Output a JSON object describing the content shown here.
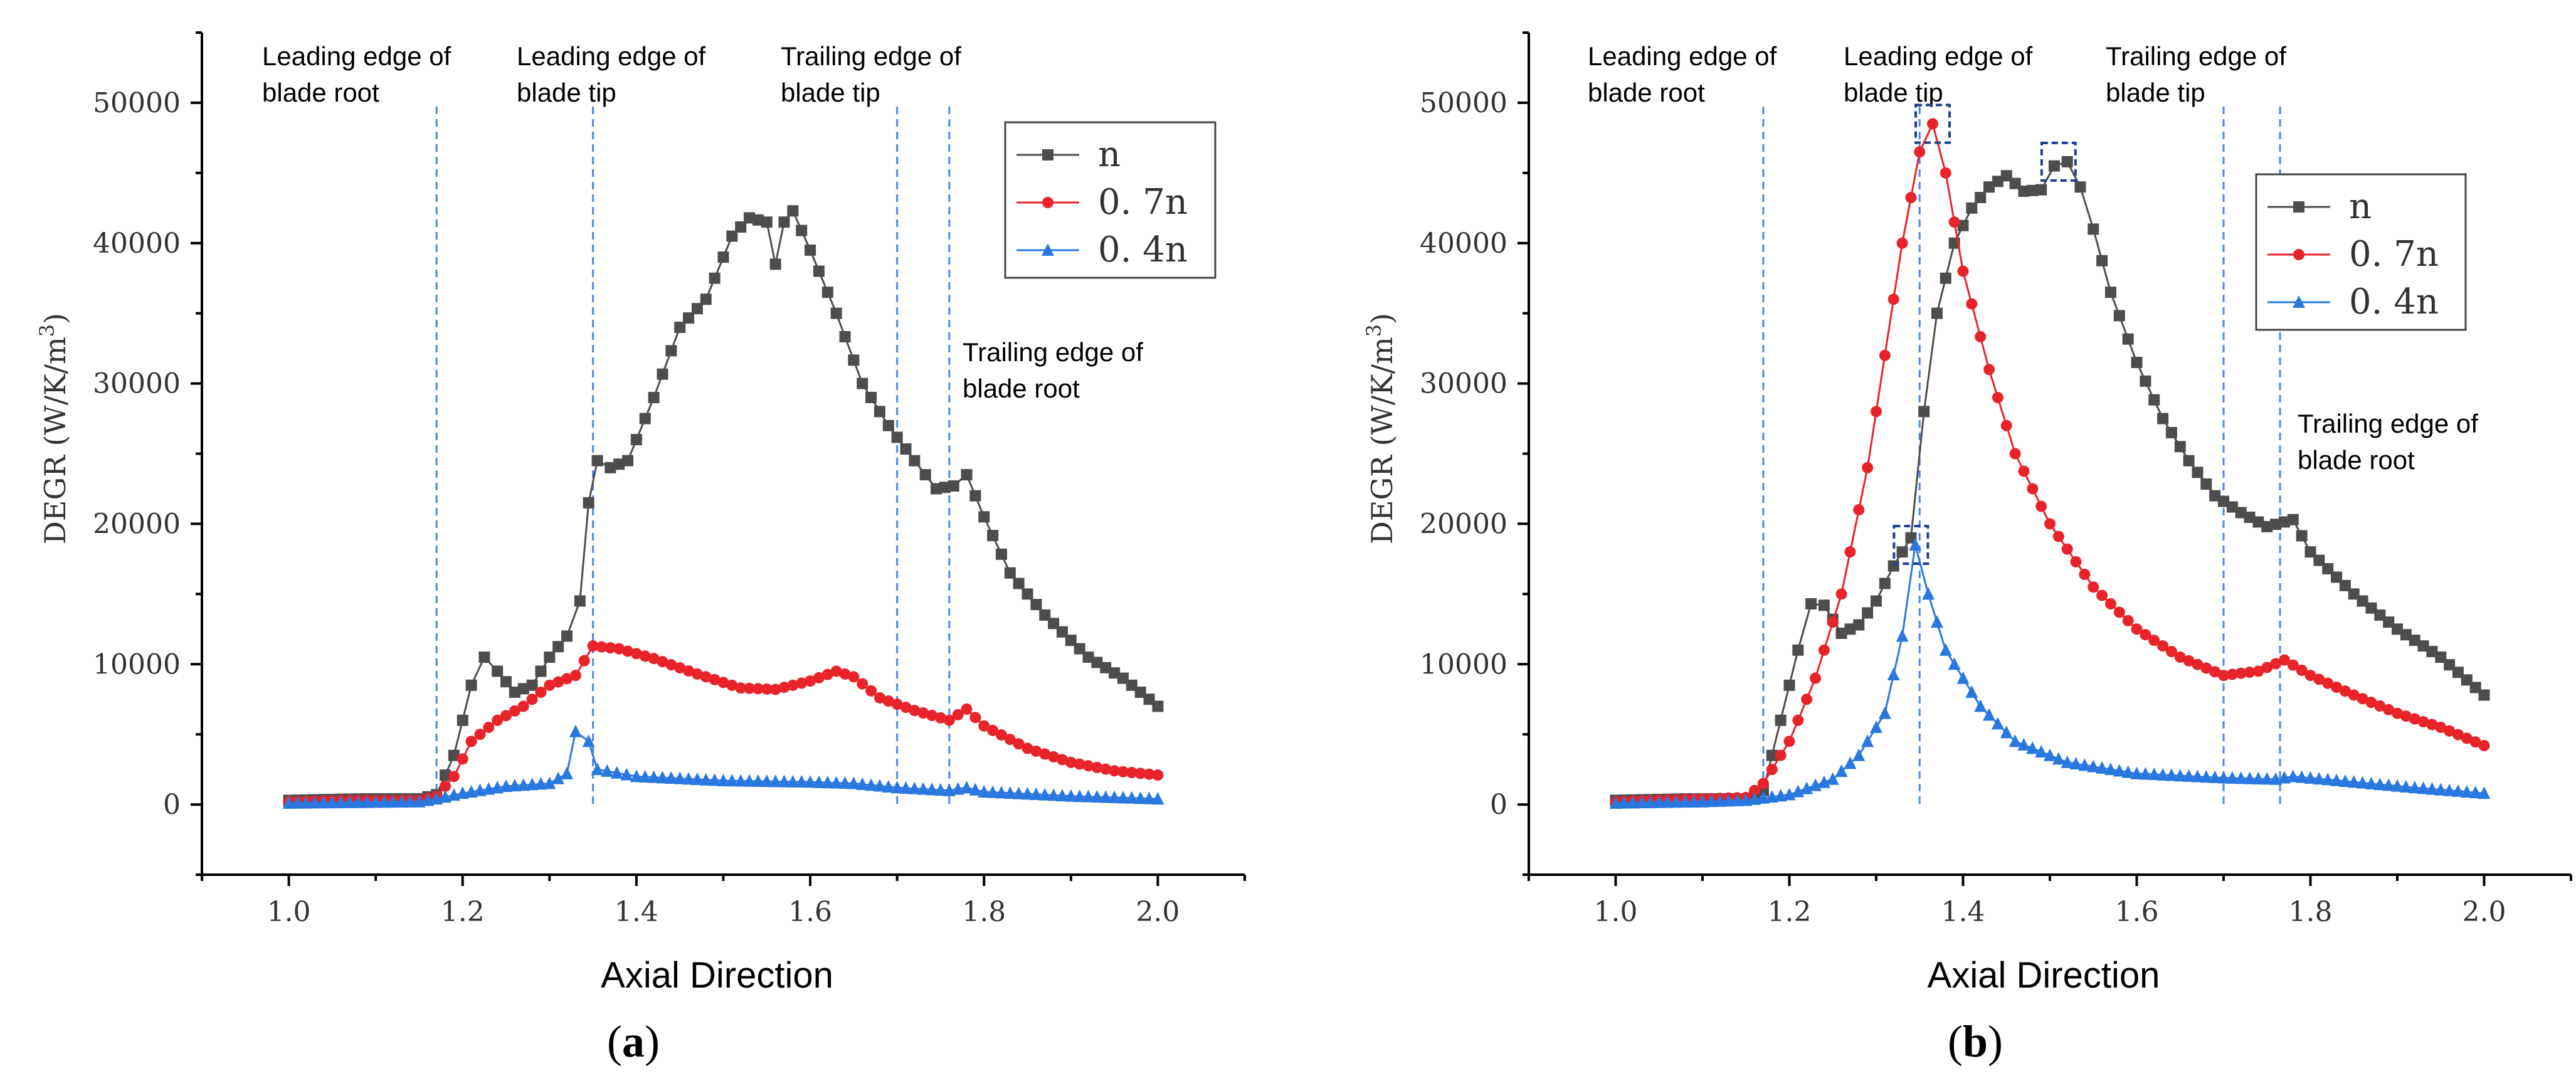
{
  "chart_data": [
    {
      "id": "a",
      "type": "line",
      "panel_label_open": "(",
      "panel_label_letter": "a",
      "panel_label_close": ")",
      "xlabel": "Axial Direction",
      "ylabel": "DEGR (W/K/m",
      "ylabel_sup": "3",
      "ylabel_close": ")",
      "xlim": [
        0.9,
        2.1
      ],
      "ylim": [
        -5000,
        55000
      ],
      "xticks": [
        "1.0",
        "1.2",
        "1.4",
        "1.6",
        "1.8",
        "2.0"
      ],
      "yticks": [
        "0",
        "10000",
        "20000",
        "30000",
        "40000",
        "50000"
      ],
      "vlines": [
        1.17,
        1.35,
        1.7,
        1.76
      ],
      "annotations": [
        {
          "lines": [
            "Leading edge of",
            "blade root"
          ],
          "x": 1.17
        },
        {
          "lines": [
            "Leading edge of",
            "blade tip"
          ],
          "x": 1.35
        },
        {
          "lines": [
            "Trailing edge of",
            "blade tip"
          ],
          "x": 1.7
        },
        {
          "lines": [
            "Trailing edge of",
            "blade root"
          ],
          "x": 1.76
        }
      ],
      "legend": [
        "n",
        "0. 7n",
        "0. 4n"
      ],
      "series": [
        {
          "name": "n",
          "color": "#4d4d4d",
          "marker": "square",
          "points": [
            [
              1.0,
              300
            ],
            [
              1.08,
              400
            ],
            [
              1.15,
              400
            ],
            [
              1.17,
              700
            ],
            [
              1.19,
              3500
            ],
            [
              1.21,
              8500
            ],
            [
              1.225,
              10500
            ],
            [
              1.24,
              9500
            ],
            [
              1.26,
              8000
            ],
            [
              1.28,
              8500
            ],
            [
              1.3,
              10500
            ],
            [
              1.32,
              12000
            ],
            [
              1.335,
              14500
            ],
            [
              1.345,
              21500
            ],
            [
              1.355,
              24500
            ],
            [
              1.37,
              24000
            ],
            [
              1.39,
              24500
            ],
            [
              1.42,
              29000
            ],
            [
              1.45,
              34000
            ],
            [
              1.48,
              36000
            ],
            [
              1.51,
              40500
            ],
            [
              1.53,
              41800
            ],
            [
              1.55,
              41500
            ],
            [
              1.56,
              38500
            ],
            [
              1.57,
              41500
            ],
            [
              1.58,
              42300
            ],
            [
              1.6,
              39500
            ],
            [
              1.63,
              35000
            ],
            [
              1.66,
              30000
            ],
            [
              1.69,
              27000
            ],
            [
              1.72,
              24500
            ],
            [
              1.745,
              22500
            ],
            [
              1.765,
              22700
            ],
            [
              1.78,
              23500
            ],
            [
              1.8,
              20500
            ],
            [
              1.83,
              16500
            ],
            [
              1.87,
              13500
            ],
            [
              1.92,
              10500
            ],
            [
              1.96,
              9000
            ],
            [
              2.0,
              7000
            ]
          ]
        },
        {
          "name": "0. 7n",
          "color": "#e8232a",
          "marker": "circle",
          "points": [
            [
              1.0,
              200
            ],
            [
              1.08,
              300
            ],
            [
              1.15,
              300
            ],
            [
              1.17,
              600
            ],
            [
              1.19,
              2000
            ],
            [
              1.21,
              4500
            ],
            [
              1.24,
              6000
            ],
            [
              1.27,
              7000
            ],
            [
              1.3,
              8500
            ],
            [
              1.33,
              9200
            ],
            [
              1.35,
              11300
            ],
            [
              1.38,
              11100
            ],
            [
              1.42,
              10400
            ],
            [
              1.47,
              9300
            ],
            [
              1.52,
              8300
            ],
            [
              1.56,
              8200
            ],
            [
              1.6,
              8800
            ],
            [
              1.63,
              9500
            ],
            [
              1.65,
              9100
            ],
            [
              1.68,
              7600
            ],
            [
              1.72,
              6700
            ],
            [
              1.76,
              6000
            ],
            [
              1.78,
              6800
            ],
            [
              1.8,
              5600
            ],
            [
              1.85,
              4000
            ],
            [
              1.9,
              3000
            ],
            [
              1.95,
              2400
            ],
            [
              2.0,
              2100
            ]
          ]
        },
        {
          "name": "0. 4n",
          "color": "#2878e0",
          "marker": "triangle",
          "points": [
            [
              1.0,
              100
            ],
            [
              1.08,
              150
            ],
            [
              1.15,
              200
            ],
            [
              1.17,
              400
            ],
            [
              1.2,
              800
            ],
            [
              1.25,
              1300
            ],
            [
              1.3,
              1500
            ],
            [
              1.32,
              2200
            ],
            [
              1.33,
              5200
            ],
            [
              1.345,
              4500
            ],
            [
              1.355,
              2500
            ],
            [
              1.4,
              2000
            ],
            [
              1.5,
              1700
            ],
            [
              1.6,
              1600
            ],
            [
              1.65,
              1500
            ],
            [
              1.7,
              1200
            ],
            [
              1.76,
              1000
            ],
            [
              1.78,
              1200
            ],
            [
              1.8,
              900
            ],
            [
              1.9,
              600
            ],
            [
              2.0,
              400
            ]
          ]
        }
      ]
    },
    {
      "id": "b",
      "type": "line",
      "panel_label_open": "(",
      "panel_label_letter": "b",
      "panel_label_close": ")",
      "xlabel": "Axial Direction",
      "ylabel": "DEGR (W/K/m",
      "ylabel_sup": "3",
      "ylabel_close": ")",
      "xlim": [
        0.9,
        2.1
      ],
      "ylim": [
        -5000,
        55000
      ],
      "xticks": [
        "1.0",
        "1.2",
        "1.4",
        "1.6",
        "1.8",
        "2.0"
      ],
      "yticks": [
        "0",
        "10000",
        "20000",
        "30000",
        "40000",
        "50000"
      ],
      "vlines": [
        1.17,
        1.35,
        1.7,
        1.765
      ],
      "annotations": [
        {
          "lines": [
            "Leading edge of",
            "blade root"
          ],
          "x": 1.17
        },
        {
          "lines": [
            "Leading edge of",
            "blade tip"
          ],
          "x": 1.35
        },
        {
          "lines": [
            "Trailing edge of",
            "blade tip"
          ],
          "x": 1.7
        },
        {
          "lines": [
            "Trailing edge of",
            "blade root"
          ],
          "x": 1.765
        }
      ],
      "legend": [
        "n",
        "0. 7n",
        "0. 4n"
      ],
      "highlights": [
        [
          1.365,
          48500
        ],
        [
          1.51,
          45800
        ],
        [
          1.34,
          18500
        ]
      ],
      "series": [
        {
          "name": "n",
          "color": "#4d4d4d",
          "marker": "square",
          "points": [
            [
              1.0,
              300
            ],
            [
              1.08,
              400
            ],
            [
              1.15,
              400
            ],
            [
              1.17,
              1000
            ],
            [
              1.19,
              6000
            ],
            [
              1.21,
              11000
            ],
            [
              1.225,
              14300
            ],
            [
              1.24,
              14200
            ],
            [
              1.26,
              12200
            ],
            [
              1.28,
              12800
            ],
            [
              1.3,
              14500
            ],
            [
              1.32,
              17000
            ],
            [
              1.34,
              19000
            ],
            [
              1.355,
              28000
            ],
            [
              1.37,
              35000
            ],
            [
              1.39,
              40000
            ],
            [
              1.41,
              42500
            ],
            [
              1.43,
              44000
            ],
            [
              1.45,
              44800
            ],
            [
              1.47,
              43700
            ],
            [
              1.49,
              43800
            ],
            [
              1.505,
              45500
            ],
            [
              1.52,
              45800
            ],
            [
              1.535,
              44000
            ],
            [
              1.55,
              41000
            ],
            [
              1.57,
              36500
            ],
            [
              1.6,
              31500
            ],
            [
              1.63,
              27500
            ],
            [
              1.66,
              24500
            ],
            [
              1.69,
              22000
            ],
            [
              1.72,
              20800
            ],
            [
              1.75,
              19800
            ],
            [
              1.78,
              20300
            ],
            [
              1.8,
              18000
            ],
            [
              1.85,
              15000
            ],
            [
              1.9,
              12500
            ],
            [
              1.95,
              10500
            ],
            [
              2.0,
              7800
            ]
          ]
        },
        {
          "name": "0. 7n",
          "color": "#e8232a",
          "marker": "circle",
          "points": [
            [
              1.0,
              200
            ],
            [
              1.1,
              400
            ],
            [
              1.15,
              500
            ],
            [
              1.17,
              1500
            ],
            [
              1.2,
              4500
            ],
            [
              1.23,
              9000
            ],
            [
              1.26,
              15000
            ],
            [
              1.29,
              24000
            ],
            [
              1.31,
              32000
            ],
            [
              1.33,
              40000
            ],
            [
              1.35,
              46500
            ],
            [
              1.365,
              48500
            ],
            [
              1.38,
              45000
            ],
            [
              1.4,
              38000
            ],
            [
              1.43,
              31000
            ],
            [
              1.46,
              25000
            ],
            [
              1.5,
              20000
            ],
            [
              1.55,
              15500
            ],
            [
              1.6,
              12500
            ],
            [
              1.65,
              10500
            ],
            [
              1.7,
              9200
            ],
            [
              1.74,
              9500
            ],
            [
              1.77,
              10300
            ],
            [
              1.8,
              9200
            ],
            [
              1.85,
              7800
            ],
            [
              1.9,
              6500
            ],
            [
              1.95,
              5500
            ],
            [
              2.0,
              4200
            ]
          ]
        },
        {
          "name": "0. 4n",
          "color": "#2878e0",
          "marker": "triangle",
          "points": [
            [
              1.0,
              100
            ],
            [
              1.1,
              200
            ],
            [
              1.15,
              300
            ],
            [
              1.2,
              700
            ],
            [
              1.25,
              1800
            ],
            [
              1.28,
              3500
            ],
            [
              1.31,
              6500
            ],
            [
              1.33,
              12000
            ],
            [
              1.345,
              18500
            ],
            [
              1.36,
              15000
            ],
            [
              1.38,
              11000
            ],
            [
              1.42,
              7000
            ],
            [
              1.46,
              4500
            ],
            [
              1.52,
              3000
            ],
            [
              1.6,
              2200
            ],
            [
              1.7,
              1900
            ],
            [
              1.76,
              1800
            ],
            [
              1.78,
              2000
            ],
            [
              1.85,
              1600
            ],
            [
              1.92,
              1200
            ],
            [
              2.0,
              800
            ]
          ]
        }
      ]
    }
  ]
}
